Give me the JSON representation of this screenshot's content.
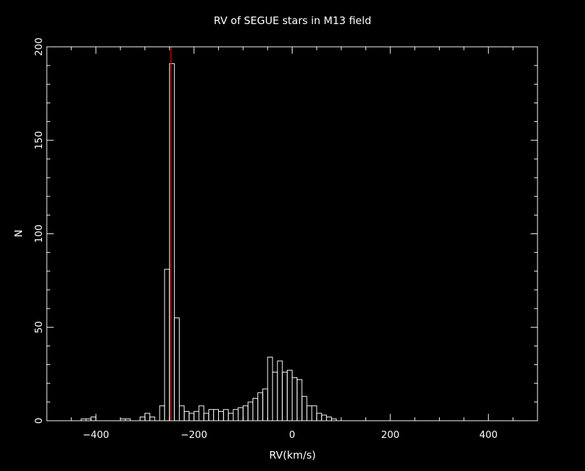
{
  "chart_data": {
    "type": "bar",
    "title": "RV of SEGUE stars in M13 field",
    "xlabel": "RV(km/s)",
    "ylabel": "N",
    "xlim": [
      -500,
      500
    ],
    "ylim": [
      0,
      200
    ],
    "xticks": [
      -400,
      -200,
      0,
      200,
      400
    ],
    "xtick_labels": [
      "−400",
      "−200",
      "0",
      "200",
      "400"
    ],
    "yticks": [
      0,
      50,
      100,
      150,
      200
    ],
    "ytick_labels": [
      "0",
      "50",
      "100",
      "150",
      "200"
    ],
    "bin_width": 10,
    "bins": [
      {
        "x": -430,
        "n": 1
      },
      {
        "x": -420,
        "n": 1
      },
      {
        "x": -410,
        "n": 2
      },
      {
        "x": -350,
        "n": 1
      },
      {
        "x": -340,
        "n": 1
      },
      {
        "x": -310,
        "n": 2
      },
      {
        "x": -300,
        "n": 4
      },
      {
        "x": -290,
        "n": 2
      },
      {
        "x": -270,
        "n": 8
      },
      {
        "x": -260,
        "n": 81
      },
      {
        "x": -250,
        "n": 191
      },
      {
        "x": -240,
        "n": 55
      },
      {
        "x": -230,
        "n": 8
      },
      {
        "x": -220,
        "n": 5
      },
      {
        "x": -210,
        "n": 4
      },
      {
        "x": -200,
        "n": 5
      },
      {
        "x": -190,
        "n": 8
      },
      {
        "x": -180,
        "n": 4
      },
      {
        "x": -170,
        "n": 6
      },
      {
        "x": -160,
        "n": 6
      },
      {
        "x": -150,
        "n": 5
      },
      {
        "x": -140,
        "n": 6
      },
      {
        "x": -130,
        "n": 4
      },
      {
        "x": -120,
        "n": 6
      },
      {
        "x": -110,
        "n": 7
      },
      {
        "x": -100,
        "n": 8
      },
      {
        "x": -90,
        "n": 10
      },
      {
        "x": -80,
        "n": 12
      },
      {
        "x": -70,
        "n": 15
      },
      {
        "x": -60,
        "n": 17
      },
      {
        "x": -50,
        "n": 34
      },
      {
        "x": -40,
        "n": 26
      },
      {
        "x": -30,
        "n": 32
      },
      {
        "x": -20,
        "n": 26
      },
      {
        "x": -10,
        "n": 27
      },
      {
        "x": 0,
        "n": 23
      },
      {
        "x": 10,
        "n": 22
      },
      {
        "x": 20,
        "n": 13
      },
      {
        "x": 30,
        "n": 8
      },
      {
        "x": 40,
        "n": 8
      },
      {
        "x": 50,
        "n": 4
      },
      {
        "x": 60,
        "n": 3
      },
      {
        "x": 70,
        "n": 2
      },
      {
        "x": 80,
        "n": 1
      }
    ],
    "reference_line": {
      "x": -247,
      "color": "#cc0000"
    },
    "colors": {
      "background": "#000000",
      "foreground": "#ffffff",
      "line": "#cc0000"
    },
    "grid": false,
    "legend": "none"
  }
}
